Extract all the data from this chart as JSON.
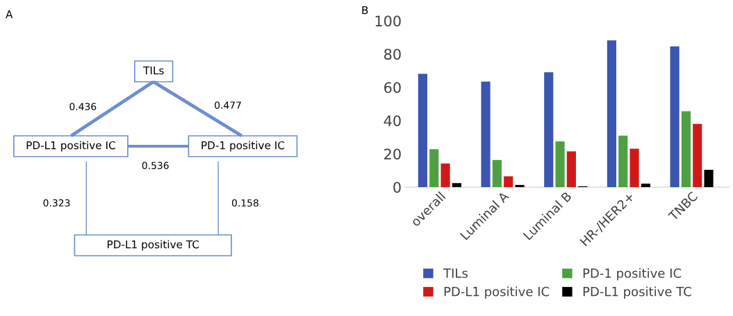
{
  "chart_data": [
    {
      "type": "other",
      "title": "A",
      "annotations": [
        "TILs",
        "PD-L1 positive IC",
        "PD-1 positive IC",
        "PD-L1 positive TC",
        "0.436",
        "0.477",
        "0.536",
        "0.323",
        "0.158"
      ]
    },
    {
      "type": "bar",
      "title": "B",
      "categories": [
        "overall",
        "Luminal A",
        "Luminal B",
        "HR-/HER2+",
        "TNBC"
      ],
      "series": [
        {
          "name": "TILs",
          "color": "#3a56b0",
          "values": [
            68.1,
            63.4,
            69.1,
            88.2,
            84.6
          ]
        },
        {
          "name": "PD-1 positive IC",
          "color": "#4ea043",
          "values": [
            22.8,
            16.3,
            27.5,
            30.9,
            45.6
          ]
        },
        {
          "name": "PD-L1 positive IC",
          "color": "#d01a1a",
          "values": [
            14.2,
            6.5,
            21.5,
            23.1,
            38.0
          ]
        },
        {
          "name": "PD-L1 positive TC",
          "color": "#000000",
          "values": [
            2.4,
            1.3,
            0.5,
            2.1,
            10.4
          ]
        }
      ],
      "ylim": [
        0,
        100
      ],
      "yticks": [
        0,
        20,
        40,
        60,
        80,
        100
      ],
      "grid": false,
      "legend": "bottom"
    }
  ]
}
